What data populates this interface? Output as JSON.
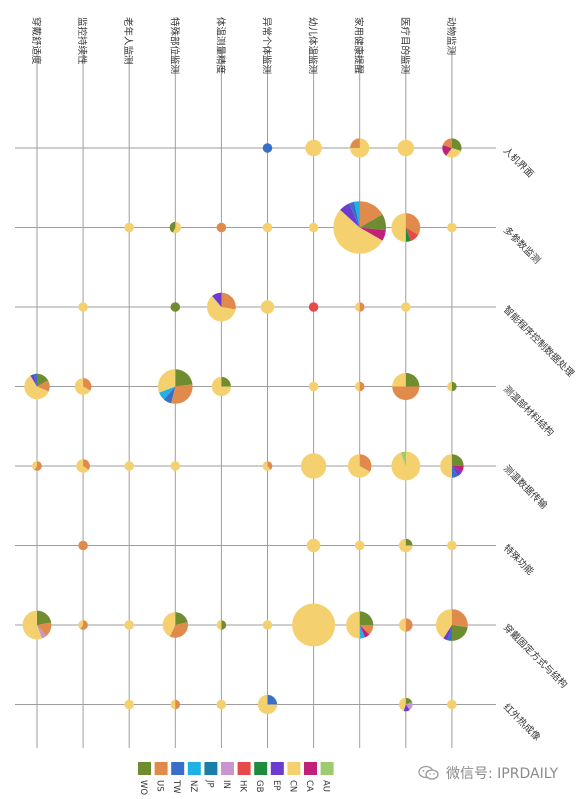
{
  "chart_data": {
    "type": "scatter",
    "subtype": "pie-bubble-matrix",
    "columns": [
      "穿戴舒适度",
      "监控持续性",
      "老年人监测",
      "特殊部位监测",
      "体温测量精度",
      "异常个体监测",
      "幼儿体温监测",
      "家用健康提醒",
      "医疗目的监测",
      "动物监测"
    ],
    "rows": [
      "人机界面",
      "多参数监测",
      "智能程序控制数据处理",
      "测温部材料结构",
      "测温数据传输",
      "特殊功能",
      "穿戴固定方式与结构",
      "红外热成像"
    ],
    "legend": {
      "position": "bottom",
      "items": [
        {
          "name": "WO",
          "color": "#6e8d31"
        },
        {
          "name": "US",
          "color": "#e08a4c"
        },
        {
          "name": "TW",
          "color": "#3a6fc9"
        },
        {
          "name": "NZ",
          "color": "#1fb0e6"
        },
        {
          "name": "JP",
          "color": "#1b7ea8"
        },
        {
          "name": "IN",
          "color": "#c895cf"
        },
        {
          "name": "HK",
          "color": "#e64b4b"
        },
        {
          "name": "GB",
          "color": "#1e8c3c"
        },
        {
          "name": "EP",
          "color": "#6a3ccf"
        },
        {
          "name": "CN",
          "color": "#f4d06f"
        },
        {
          "name": "CA",
          "color": "#c0227a"
        },
        {
          "name": "AU",
          "color": "#9ccc6f"
        }
      ]
    },
    "cells": [
      {
        "row": 0,
        "col": 5,
        "total": 1,
        "parts": {
          "TW": 1
        }
      },
      {
        "row": 0,
        "col": 6,
        "total": 3,
        "parts": {
          "CN": 3
        }
      },
      {
        "row": 0,
        "col": 7,
        "total": 4,
        "parts": {
          "CN": 3,
          "US": 1
        }
      },
      {
        "row": 0,
        "col": 8,
        "total": 3,
        "parts": {
          "CN": 3
        }
      },
      {
        "row": 0,
        "col": 9,
        "total": 4,
        "parts": {
          "WO": 1.2,
          "CN": 1.2,
          "CA": 0.8,
          "US": 0.8
        }
      },
      {
        "row": 1,
        "col": 2,
        "total": 1,
        "parts": {
          "CN": 1
        }
      },
      {
        "row": 1,
        "col": 3,
        "total": 1.4,
        "parts": {
          "CN": 0.8,
          "WO": 0.6
        }
      },
      {
        "row": 1,
        "col": 4,
        "total": 1,
        "parts": {
          "US": 1
        }
      },
      {
        "row": 1,
        "col": 5,
        "total": 1,
        "parts": {
          "CN": 1
        }
      },
      {
        "row": 1,
        "col": 6,
        "total": 1,
        "parts": {
          "CN": 1
        }
      },
      {
        "row": 1,
        "col": 7,
        "total": 30,
        "parts": {
          "US": 5,
          "WO": 3,
          "CA": 2,
          "CN": 16,
          "EP": 2,
          "TW": 1,
          "NZ": 1
        }
      },
      {
        "row": 1,
        "col": 8,
        "total": 9,
        "parts": {
          "US": 3,
          "HK": 1,
          "GB": 0.5,
          "CN": 4.5
        }
      },
      {
        "row": 1,
        "col": 9,
        "total": 1,
        "parts": {
          "CN": 1
        }
      },
      {
        "row": 2,
        "col": 1,
        "total": 1,
        "parts": {
          "CN": 1
        }
      },
      {
        "row": 2,
        "col": 3,
        "total": 1,
        "parts": {
          "WO": 1
        }
      },
      {
        "row": 2,
        "col": 4,
        "total": 9,
        "parts": {
          "US": 2.5,
          "CN": 5.5,
          "EP": 1
        }
      },
      {
        "row": 2,
        "col": 5,
        "total": 2,
        "parts": {
          "CN": 2
        }
      },
      {
        "row": 2,
        "col": 6,
        "total": 1,
        "parts": {
          "HK": 1
        }
      },
      {
        "row": 2,
        "col": 7,
        "total": 1,
        "parts": {
          "US": 0.5,
          "CN": 0.5
        }
      },
      {
        "row": 2,
        "col": 8,
        "total": 1,
        "parts": {
          "CN": 1
        }
      },
      {
        "row": 3,
        "col": 0,
        "total": 7,
        "parts": {
          "WO": 1.2,
          "US": 1,
          "CN": 4.2,
          "EP": 0.3,
          "TW": 0.3
        }
      },
      {
        "row": 3,
        "col": 1,
        "total": 3,
        "parts": {
          "US": 1,
          "CN": 2
        }
      },
      {
        "row": 3,
        "col": 3,
        "total": 13,
        "parts": {
          "WO": 3,
          "US": 4,
          "TW": 1,
          "NZ": 1,
          "CN": 4
        }
      },
      {
        "row": 3,
        "col": 4,
        "total": 4,
        "parts": {
          "WO": 1,
          "CN": 3
        }
      },
      {
        "row": 3,
        "col": 6,
        "total": 1,
        "parts": {
          "CN": 1
        }
      },
      {
        "row": 3,
        "col": 7,
        "total": 1,
        "parts": {
          "US": 0.5,
          "CN": 0.5
        }
      },
      {
        "row": 3,
        "col": 8,
        "total": 8,
        "parts": {
          "WO": 2,
          "US": 4,
          "CN": 2
        }
      },
      {
        "row": 3,
        "col": 9,
        "total": 1,
        "parts": {
          "WO": 0.5,
          "CN": 0.5
        }
      },
      {
        "row": 4,
        "col": 0,
        "total": 1,
        "parts": {
          "US": 0.6,
          "CN": 0.4
        }
      },
      {
        "row": 4,
        "col": 1,
        "total": 2,
        "parts": {
          "US": 0.7,
          "CN": 1.3
        }
      },
      {
        "row": 4,
        "col": 2,
        "total": 1,
        "parts": {
          "CN": 1
        }
      },
      {
        "row": 4,
        "col": 3,
        "total": 1,
        "parts": {
          "CN": 1
        }
      },
      {
        "row": 4,
        "col": 5,
        "total": 1,
        "parts": {
          "US": 0.4,
          "CN": 0.6
        }
      },
      {
        "row": 4,
        "col": 6,
        "total": 7,
        "parts": {
          "CN": 7
        }
      },
      {
        "row": 4,
        "col": 7,
        "total": 6,
        "parts": {
          "US": 2,
          "CN": 4
        }
      },
      {
        "row": 4,
        "col": 8,
        "total": 9,
        "parts": {
          "CN": 8.5,
          "AU": 0.5
        }
      },
      {
        "row": 4,
        "col": 9,
        "total": 6,
        "parts": {
          "WO": 1.5,
          "CA": 0.5,
          "EP": 0.5,
          "TW": 0.5,
          "CN": 3
        }
      },
      {
        "row": 5,
        "col": 1,
        "total": 1,
        "parts": {
          "US": 1
        }
      },
      {
        "row": 5,
        "col": 6,
        "total": 2,
        "parts": {
          "CN": 2
        }
      },
      {
        "row": 5,
        "col": 7,
        "total": 1,
        "parts": {
          "CN": 1
        }
      },
      {
        "row": 5,
        "col": 8,
        "total": 2,
        "parts": {
          "WO": 0.5,
          "CN": 1.5
        }
      },
      {
        "row": 5,
        "col": 9,
        "total": 1,
        "parts": {
          "CN": 1
        }
      },
      {
        "row": 6,
        "col": 0,
        "total": 9,
        "parts": {
          "WO": 2,
          "US": 1.5,
          "IN": 0.5,
          "CN": 5
        }
      },
      {
        "row": 6,
        "col": 1,
        "total": 1,
        "parts": {
          "US": 0.6,
          "CN": 0.4
        }
      },
      {
        "row": 6,
        "col": 2,
        "total": 1,
        "parts": {
          "CN": 1
        }
      },
      {
        "row": 6,
        "col": 3,
        "total": 7,
        "parts": {
          "WO": 1.5,
          "US": 2.5,
          "CN": 3
        }
      },
      {
        "row": 6,
        "col": 4,
        "total": 1,
        "parts": {
          "WO": 0.5,
          "CN": 0.5
        }
      },
      {
        "row": 6,
        "col": 5,
        "total": 1,
        "parts": {
          "CN": 1
        }
      },
      {
        "row": 6,
        "col": 6,
        "total": 20,
        "parts": {
          "CN": 20
        }
      },
      {
        "row": 6,
        "col": 7,
        "total": 8,
        "parts": {
          "WO": 2,
          "US": 1,
          "CA": 0.5,
          "NZ": 0.5,
          "CN": 4
        }
      },
      {
        "row": 6,
        "col": 8,
        "total": 2,
        "parts": {
          "US": 1,
          "CN": 1
        }
      },
      {
        "row": 6,
        "col": 9,
        "total": 11,
        "parts": {
          "US": 3,
          "WO": 2.5,
          "TW": 0.5,
          "EP": 0.5,
          "CN": 4.5
        }
      },
      {
        "row": 7,
        "col": 2,
        "total": 1,
        "parts": {
          "CN": 1
        }
      },
      {
        "row": 7,
        "col": 3,
        "total": 1,
        "parts": {
          "US": 0.5,
          "CN": 0.5
        }
      },
      {
        "row": 7,
        "col": 4,
        "total": 1,
        "parts": {
          "CN": 1
        }
      },
      {
        "row": 7,
        "col": 5,
        "total": 4,
        "parts": {
          "TW": 1,
          "CN": 3
        }
      },
      {
        "row": 7,
        "col": 8,
        "total": 2,
        "parts": {
          "WO": 0.4,
          "IN": 0.4,
          "EP": 0.3,
          "CN": 0.9
        }
      },
      {
        "row": 7,
        "col": 9,
        "total": 1,
        "parts": {
          "CN": 1
        }
      }
    ]
  },
  "watermark": {
    "text": "微信号: IPRDAILY"
  }
}
